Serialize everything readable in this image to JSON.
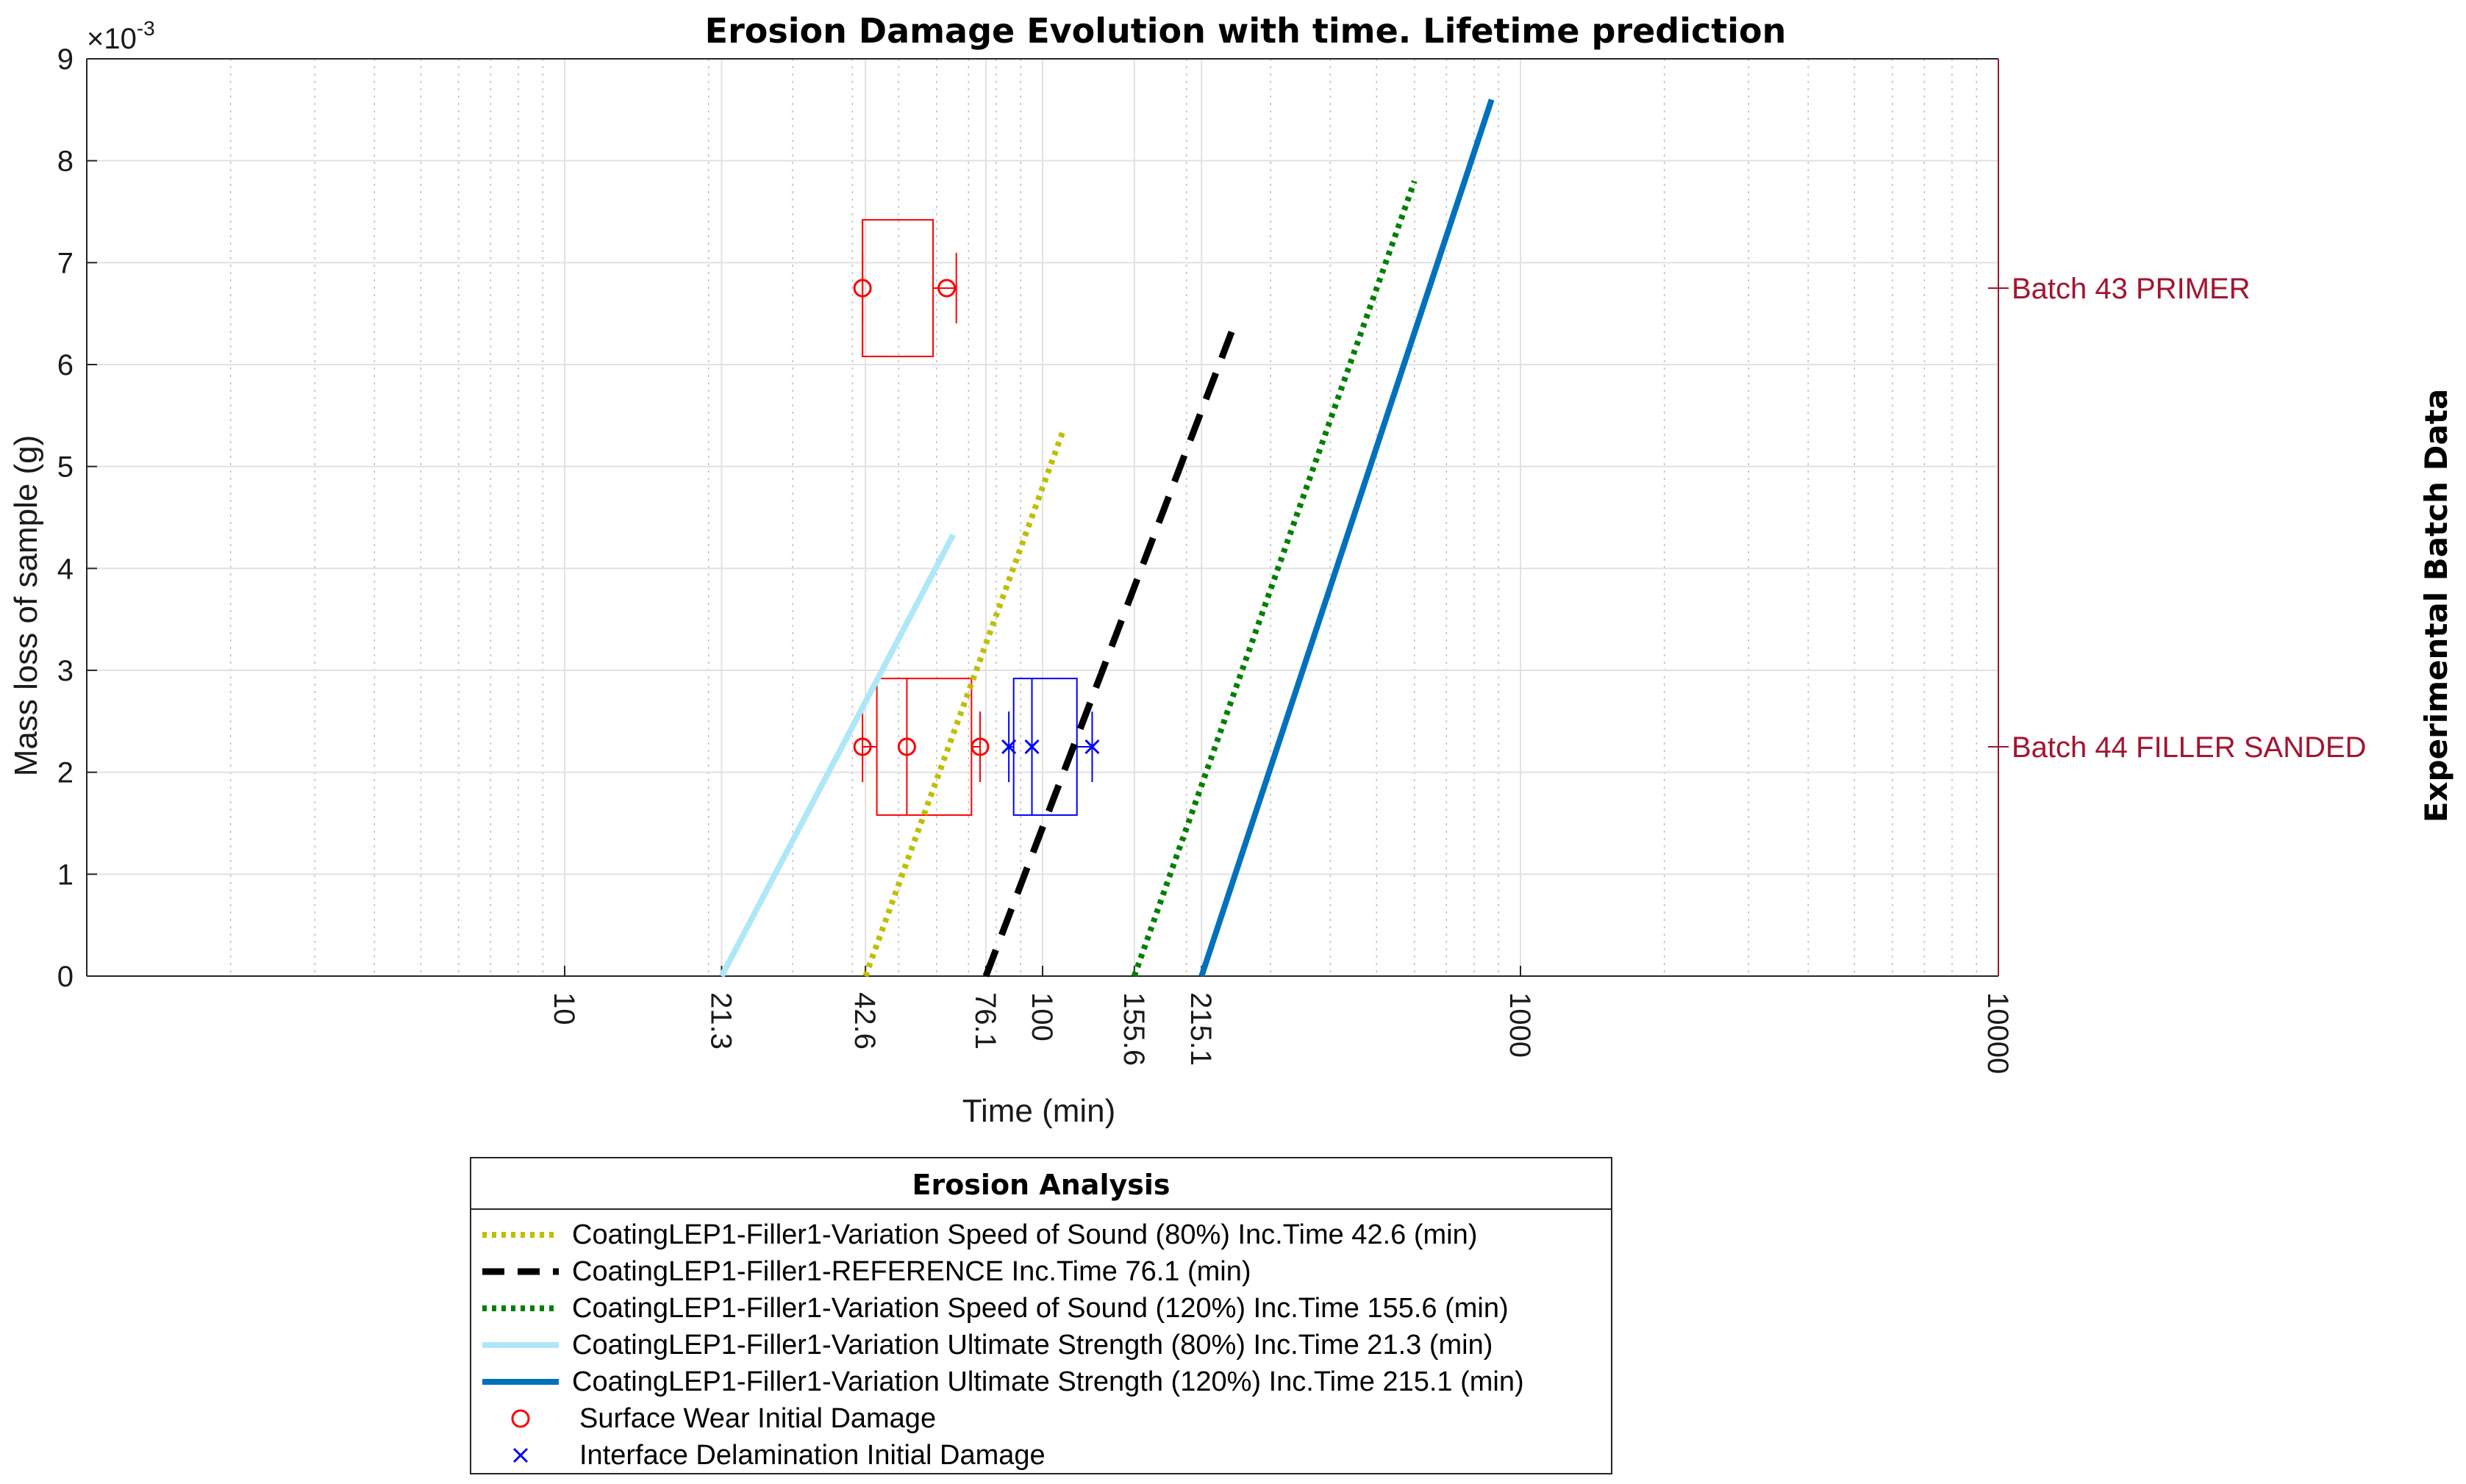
{
  "chart_data": {
    "type": "line",
    "title": "Erosion Damage Evolution with time. Lifetime prediction",
    "xlabel": "Time (min)",
    "ylabel": "Mass loss of sample (g)",
    "x_scale": "log",
    "xlim": [
      1,
      10000
    ],
    "ylim": [
      0,
      0.009
    ],
    "y_exponent_label": "×10",
    "y_exponent_power": "-3",
    "y_ticks": [
      0,
      1,
      2,
      3,
      4,
      5,
      6,
      7,
      8,
      9
    ],
    "y_tick_labels": [
      "0",
      "1",
      "2",
      "3",
      "4",
      "5",
      "6",
      "7",
      "8",
      "9"
    ],
    "x_ticks": [
      10,
      21.3,
      42.6,
      76.1,
      100,
      155.6,
      215.1,
      1000,
      10000
    ],
    "x_tick_labels": [
      "10",
      "21.3",
      "42.6",
      "76.1",
      "100",
      "155.6",
      "215.1",
      "1000",
      "10000"
    ],
    "grid": true,
    "series": [
      {
        "name": "CoatingLEP1-Filler1-Variation Speed of Sound (80%) Inc.Time 42.6 (min)",
        "color": "#bfbf00",
        "style": "dotted",
        "x": [
          42.6,
          110
        ],
        "y": [
          0,
          0.00533
        ]
      },
      {
        "name": "CoatingLEP1-Filler1-REFERENCE Inc.Time 76.1 (min)",
        "color": "#000000",
        "style": "dashed",
        "x": [
          76.1,
          250
        ],
        "y": [
          0,
          0.00635
        ]
      },
      {
        "name": "CoatingLEP1-Filler1-Variation Speed of Sound (120%) Inc.Time 155.6 (min)",
        "color": "#008000",
        "style": "dotted",
        "x": [
          155.6,
          600
        ],
        "y": [
          0,
          0.0078
        ]
      },
      {
        "name": "CoatingLEP1-Filler1-Variation Ultimate Strength (80%) Inc.Time 21.3 (min)",
        "color": "#aee8f8",
        "style": "solid",
        "x": [
          21.3,
          65
        ],
        "y": [
          0,
          0.00433
        ]
      },
      {
        "name": "CoatingLEP1-Filler1-Variation Ultimate Strength (120%) Inc.Time 215.1 (min)",
        "color": "#0072bd",
        "style": "solid",
        "x": [
          215.1,
          870
        ],
        "y": [
          0,
          0.0086
        ]
      }
    ],
    "markers": [
      {
        "name": "Surface Wear Initial Damage",
        "symbol": "o",
        "color": "#ff0000",
        "points": [
          [
            42,
            0.00675
          ],
          [
            63,
            0.00675
          ],
          [
            42,
            0.00225
          ],
          [
            52,
            0.00225
          ],
          [
            74,
            0.00225
          ]
        ]
      },
      {
        "name": "Interface Delamination Initial Damage",
        "symbol": "x",
        "color": "#0000ff",
        "points": [
          [
            85,
            0.00225
          ],
          [
            95,
            0.00225
          ],
          [
            127,
            0.00225
          ]
        ]
      }
    ],
    "boxplots": [
      {
        "group": "Batch 43 PRIMER",
        "color": "#ff0000",
        "y": 0.00675,
        "whisker": [
          42,
          66
        ],
        "box": [
          42,
          59
        ],
        "median": 42,
        "box_y": [
          0.00608,
          0.00742
        ]
      },
      {
        "group": "Batch 44  FILLER SANDED",
        "color": "#ff0000",
        "y": 0.00225,
        "whisker": [
          42,
          74
        ],
        "box": [
          45,
          71
        ],
        "median": 52,
        "box_y": [
          0.00158,
          0.00292
        ]
      },
      {
        "group": "Batch 44  FILLER SANDED",
        "color": "#0000ff",
        "y": 0.00225,
        "whisker": [
          85,
          127
        ],
        "box": [
          87,
          118
        ],
        "median": 95,
        "box_y": [
          0.00158,
          0.00292
        ]
      }
    ],
    "right_axis": {
      "label": "Experimental Batch Data",
      "color": "#a2142f",
      "categories": [
        {
          "label": "Batch 43 PRIMER",
          "y": 0.00675
        },
        {
          "label": "Batch 44  FILLER SANDED",
          "y": 0.00225
        }
      ]
    },
    "legend": {
      "title": "Erosion Analysis",
      "placement": "below"
    }
  }
}
